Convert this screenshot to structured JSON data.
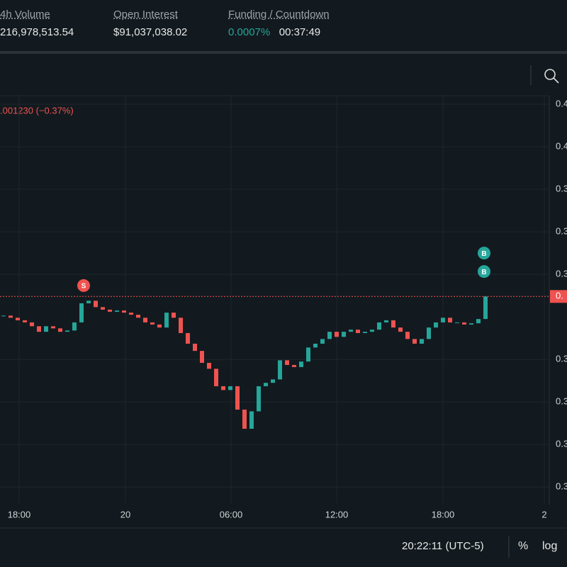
{
  "header": {
    "stats": [
      {
        "label": "4h Volume",
        "value": "216,978,513.54"
      },
      {
        "label": "Open Interest",
        "value": "$91,037,038.02"
      },
      {
        "label": "Funding / Countdown",
        "value": "0.0007%",
        "countdown": "00:37:49"
      }
    ]
  },
  "chart_data": {
    "type": "candlestick",
    "change_label": ".001230 (−0.37%)",
    "closes": [
      0.3603,
      0.3598,
      0.3592,
      0.3587,
      0.3578,
      0.3565,
      0.3578,
      0.3573,
      0.3565,
      0.3568,
      0.3587,
      0.3632,
      0.3638,
      0.3623,
      0.3617,
      0.3612,
      0.3615,
      0.361,
      0.3605,
      0.3598,
      0.3587,
      0.3582,
      0.3575,
      0.361,
      0.3598,
      0.3562,
      0.3537,
      0.352,
      0.3492,
      0.3478,
      0.3437,
      0.3428,
      0.3437,
      0.3382,
      0.3337,
      0.3378,
      0.3437,
      0.3445,
      0.3453,
      0.3498,
      0.3487,
      0.3482,
      0.3495,
      0.3528,
      0.3537,
      0.3548,
      0.3565,
      0.3553,
      0.3565,
      0.357,
      0.3562,
      0.3565,
      0.357,
      0.3587,
      0.3592,
      0.3575,
      0.3565,
      0.3548,
      0.3537,
      0.3548,
      0.3575,
      0.3587,
      0.3598,
      0.3587,
      0.3587,
      0.3582,
      0.3585,
      0.3595,
      0.3648
    ],
    "up_color": "#26a69a",
    "down_color": "#ef5350",
    "xlim": [
      -0.5,
      77
    ],
    "xticks": [
      {
        "value": 2.2,
        "label": "18:00"
      },
      {
        "value": 17.2,
        "label": "20"
      },
      {
        "value": 32.1,
        "label": "06:00"
      },
      {
        "value": 47,
        "label": "12:00"
      },
      {
        "value": 62,
        "label": "18:00"
      },
      {
        "value": 76.3,
        "label": "2"
      }
    ],
    "ylim": [
      0.3162,
      0.412
    ],
    "yticks": [
      {
        "value": 0.41,
        "label": "0.4"
      },
      {
        "value": 0.4,
        "label": "0.4"
      },
      {
        "value": 0.39,
        "label": "0.3"
      },
      {
        "value": 0.38,
        "label": "0.3"
      },
      {
        "value": 0.37,
        "label": "0.3"
      },
      {
        "value": 0.35,
        "label": "0.3"
      },
      {
        "value": 0.34,
        "label": "0.3"
      },
      {
        "value": 0.33,
        "label": "0.3"
      },
      {
        "value": 0.32,
        "label": "0.3"
      }
    ],
    "last_price": {
      "value": 0.3648,
      "label": "0."
    },
    "markers": [
      {
        "text": "S",
        "at": 11
      },
      {
        "text": "B",
        "at": 67
      },
      {
        "text": "B",
        "at": 67
      }
    ]
  },
  "footer": {
    "time": "20:22:11 (UTC-5)",
    "percent": "%",
    "log": "log"
  }
}
